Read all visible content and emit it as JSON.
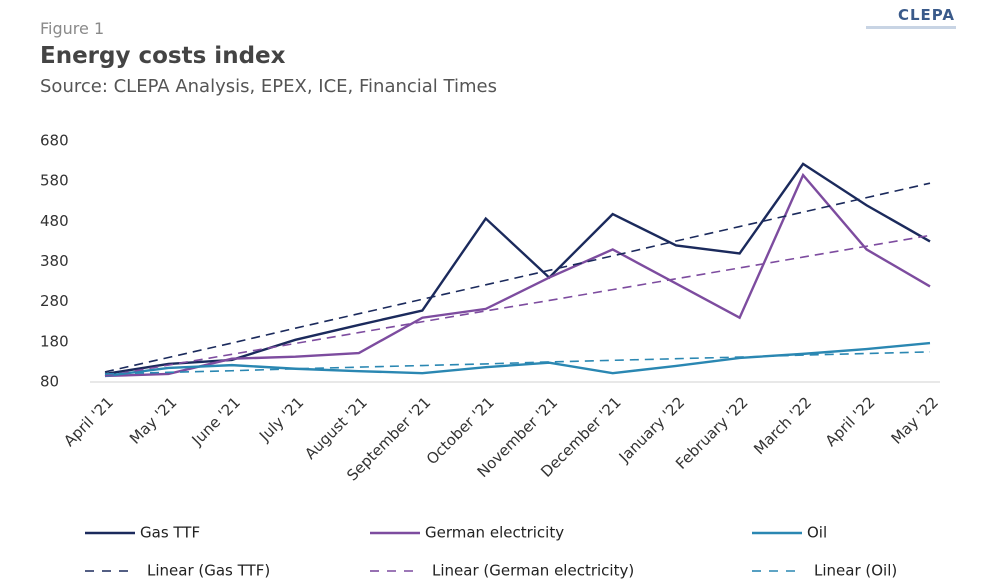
{
  "chart_data": {
    "type": "line",
    "figure_label": "Figure 1",
    "title": "Energy costs index",
    "subtitle": "Source: CLEPA Analysis, EPEX, ICE, Financial Times",
    "logo": "CLEPA",
    "categories": [
      "April '21",
      "May '21",
      "June '21",
      "July '21",
      "August '21",
      "September '21",
      "October '21",
      "November '21",
      "December '21",
      "January '22",
      "February '22",
      "March '22",
      "April '22",
      "May '22"
    ],
    "series": [
      {
        "name": "Gas TTF",
        "color": "#1b2a5c",
        "line_style": "solid",
        "values": [
          100,
          125,
          135,
          185,
          222,
          258,
          487,
          340,
          498,
          420,
          400,
          623,
          520,
          430
        ]
      },
      {
        "name": "German electricity",
        "color": "#7d4c9f",
        "line_style": "solid",
        "values": [
          95,
          100,
          138,
          143,
          152,
          240,
          262,
          340,
          410,
          325,
          240,
          595,
          410,
          318
        ]
      },
      {
        "name": "Oil",
        "color": "#2a87b2",
        "line_style": "solid",
        "values": [
          95,
          115,
          122,
          113,
          107,
          102,
          117,
          128,
          102,
          120,
          140,
          150,
          162,
          177
        ]
      },
      {
        "name": "Linear (Gas TTF)",
        "color": "#1b2a5c",
        "line_style": "dashed",
        "values": [
          105,
          141,
          177,
          214,
          250,
          286,
          322,
          358,
          394,
          431,
          467,
          503,
          539,
          575
        ]
      },
      {
        "name": "Linear (German electricity)",
        "color": "#7d4c9f",
        "line_style": "dashed",
        "values": [
          95,
          122,
          149,
          176,
          203,
          230,
          257,
          283,
          310,
          337,
          364,
          391,
          418,
          445
        ]
      },
      {
        "name": "Linear (Oil)",
        "color": "#2a87b2",
        "line_style": "dashed",
        "values": [
          100,
          104,
          108,
          113,
          117,
          121,
          125,
          130,
          134,
          138,
          142,
          147,
          151,
          155
        ]
      }
    ],
    "ylim": [
      80,
      680
    ],
    "yticks": [
      80,
      180,
      280,
      380,
      480,
      580,
      680
    ],
    "legend": "bottom"
  }
}
